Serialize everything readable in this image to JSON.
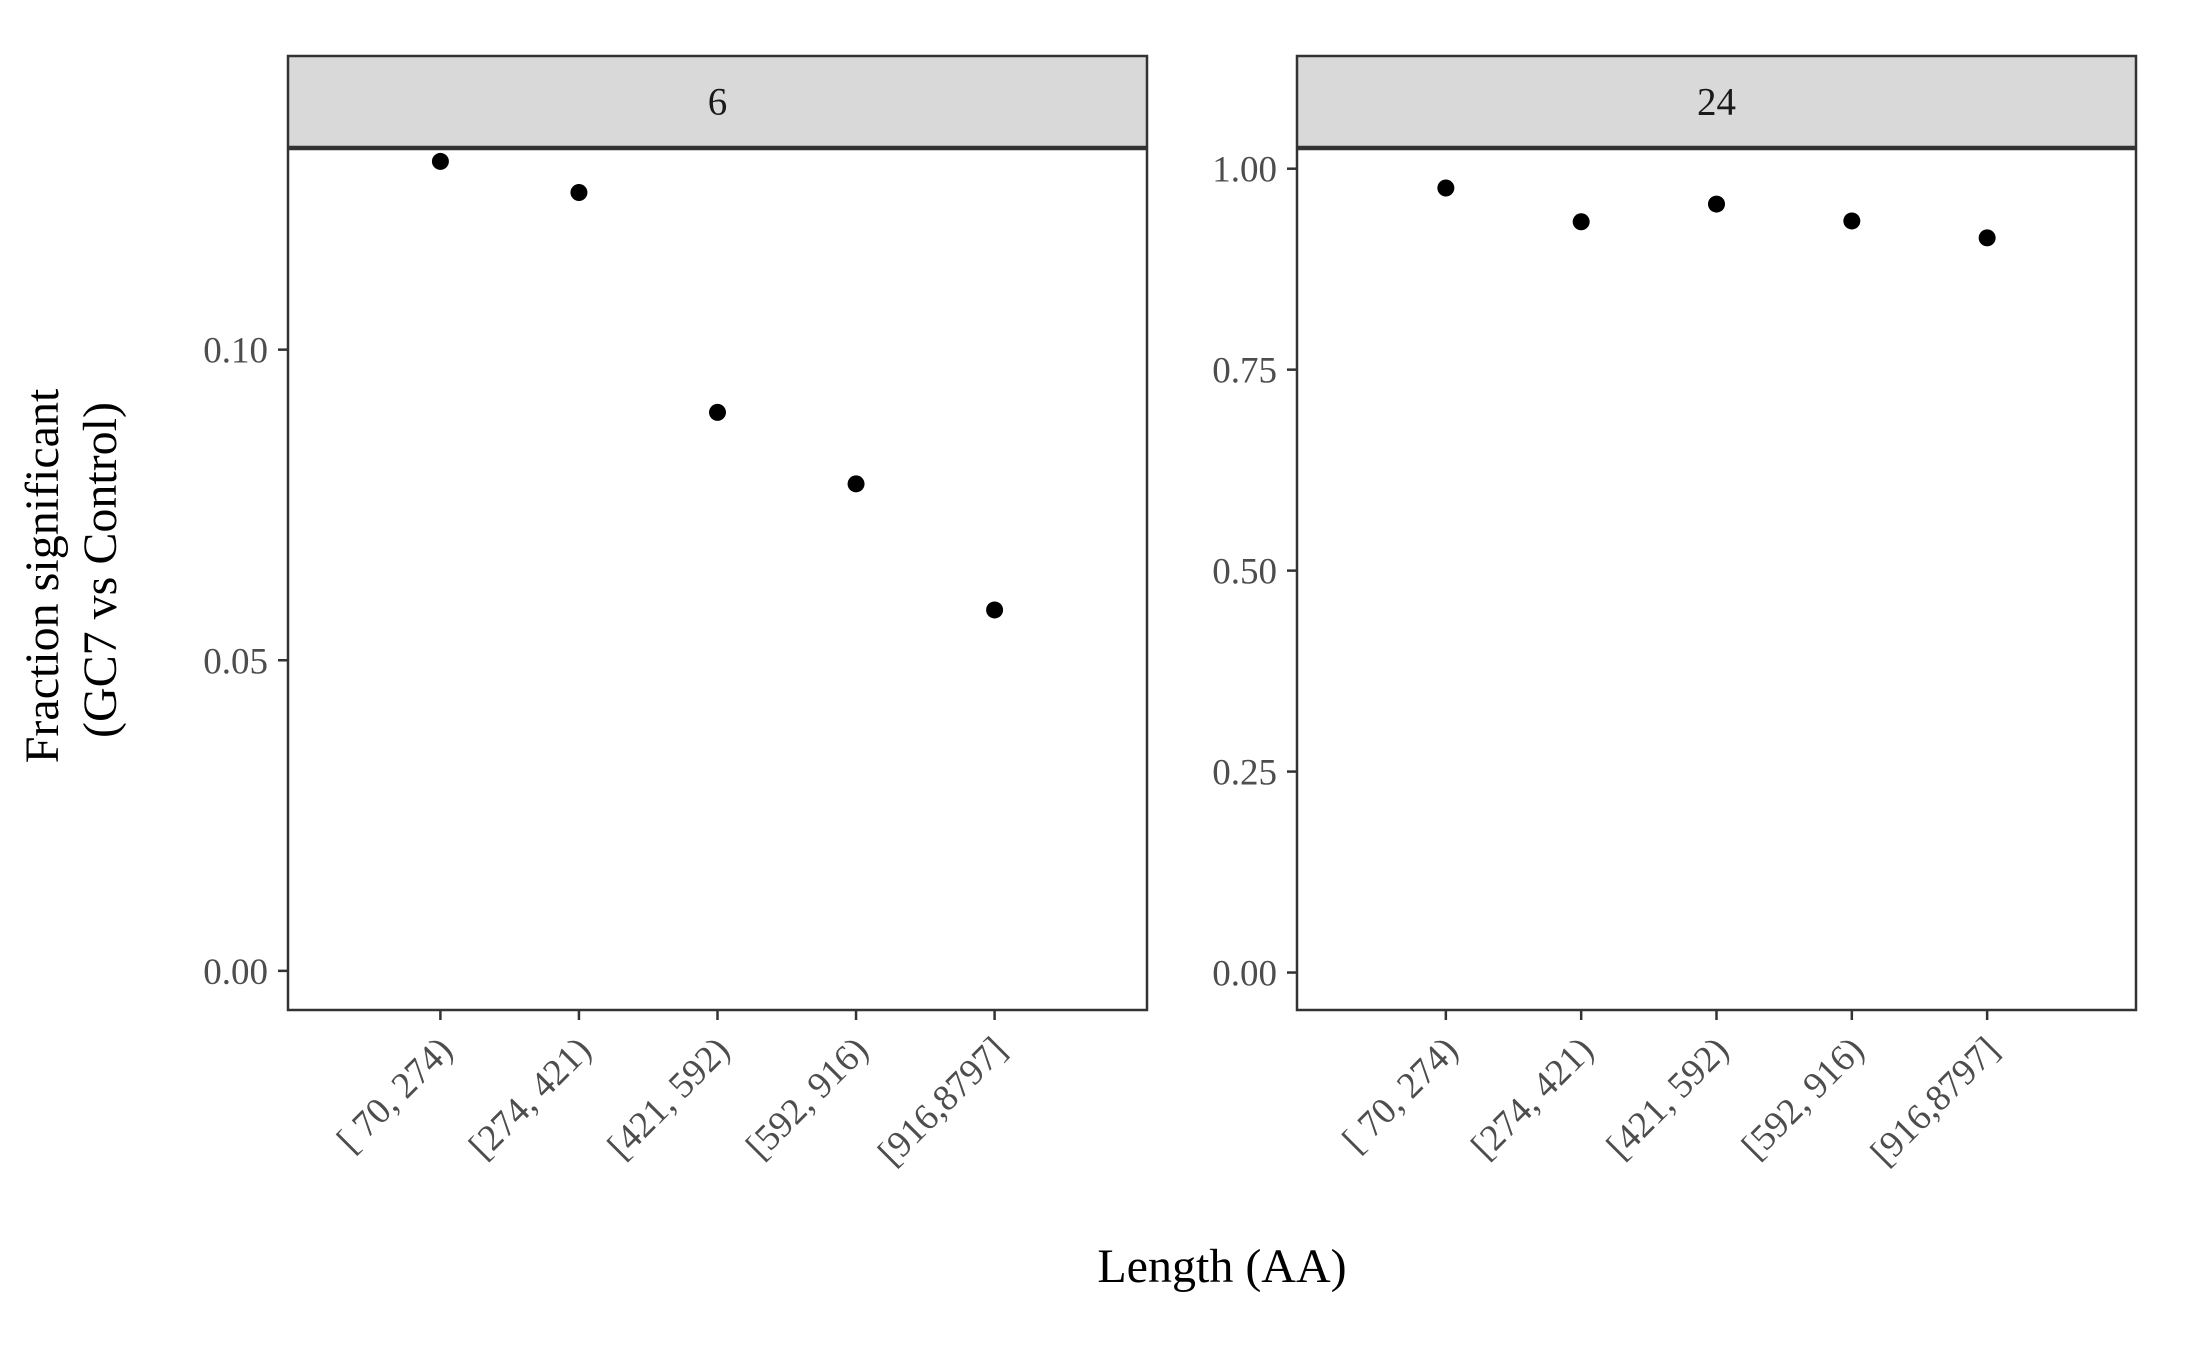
{
  "chart_data": {
    "type": "scatter",
    "xlabel": "Length (AA)",
    "ylabel_lines": [
      "Fraction significant",
      "(GC7 vs Control)"
    ],
    "categories": [
      "[ 70, 274)",
      "[274, 421)",
      "[421, 592)",
      "[592, 916)",
      "[916,8797]"
    ],
    "grid": false,
    "colors": {
      "point": "#000000",
      "strip_fill": "#d9d9d9",
      "frame": "#333333"
    },
    "panels": [
      {
        "strip": "6",
        "ylim": [
          -0.0063,
          0.1323
        ],
        "yticks": [
          {
            "value": 0.0,
            "label": "0.00"
          },
          {
            "value": 0.05,
            "label": "0.05"
          },
          {
            "value": 0.1,
            "label": "0.10"
          }
        ],
        "values": [
          0.1303,
          0.1253,
          0.0899,
          0.0784,
          0.0581
        ]
      },
      {
        "strip": "24",
        "ylim": [
          -0.0466,
          1.0245
        ],
        "yticks": [
          {
            "value": 0.0,
            "label": "0.00"
          },
          {
            "value": 0.25,
            "label": "0.25"
          },
          {
            "value": 0.5,
            "label": "0.50"
          },
          {
            "value": 0.75,
            "label": "0.75"
          },
          {
            "value": 1.0,
            "label": "1.00"
          }
        ],
        "values": [
          0.976,
          0.934,
          0.956,
          0.935,
          0.914
        ]
      }
    ]
  }
}
